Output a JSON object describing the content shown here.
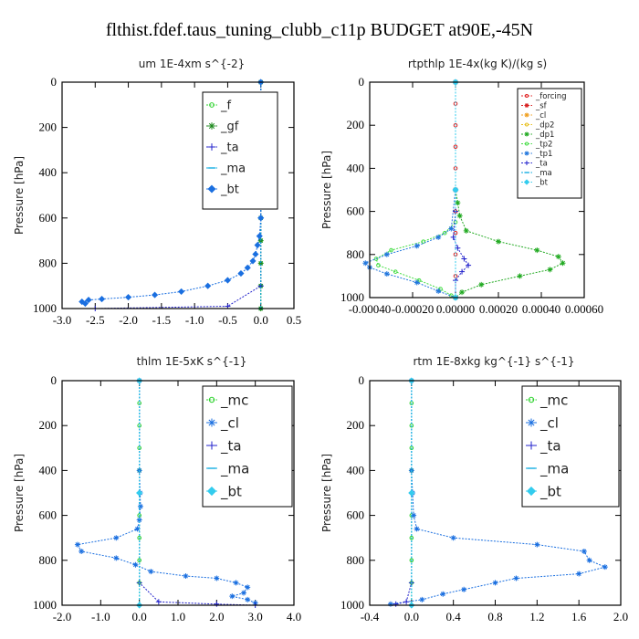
{
  "title": "flthist.fdef.taus_tuning_clubb_c11p  BUDGET at90E,-45N",
  "chart_data": [
    {
      "type": "line",
      "title": "um   1E-4xm s^{-2}",
      "ylabel": "Pressure [hPa]",
      "xlim": [
        -3.0,
        0.5
      ],
      "ylim": [
        1000,
        0
      ],
      "xticks": [
        "-3.0",
        "-2.5",
        "-2.0",
        "-1.5",
        "-1.0",
        "-0.5",
        "0.0",
        "0.5"
      ],
      "yticks": [
        "0",
        "200",
        "400",
        "600",
        "800",
        "1000"
      ],
      "legend_position": "top-right",
      "series": [
        {
          "name": "_f",
          "color": "#2bd12b",
          "marker": "circle",
          "points": [
            [
              0.0,
              0
            ],
            [
              0.0,
              100
            ],
            [
              0.0,
              200
            ],
            [
              0.0,
              300
            ],
            [
              0.0,
              400
            ],
            [
              0.0,
              500
            ],
            [
              0.0,
              600
            ],
            [
              0.0,
              700
            ],
            [
              0.0,
              800
            ],
            [
              0.0,
              900
            ],
            [
              0.0,
              1000
            ]
          ]
        },
        {
          "name": "_gf",
          "color": "#1f8a1f",
          "marker": "star",
          "points": [
            [
              0.0,
              0
            ],
            [
              0.0,
              100
            ],
            [
              0.0,
              200
            ],
            [
              0.0,
              300
            ],
            [
              0.0,
              400
            ],
            [
              0.0,
              500
            ],
            [
              0.0,
              600
            ],
            [
              0.0,
              700
            ],
            [
              0.0,
              800
            ],
            [
              0.0,
              900
            ],
            [
              0.0,
              1000
            ]
          ]
        },
        {
          "name": "_ta",
          "color": "#2222cc",
          "marker": "plus",
          "points": [
            [
              0.0,
              0
            ],
            [
              0.0,
              500
            ],
            [
              0.0,
              900
            ],
            [
              -0.5,
              990
            ],
            [
              -2.5,
              1000
            ]
          ]
        },
        {
          "name": "_ma",
          "color": "#00a8e0",
          "marker": "dash",
          "points": [
            [
              0.0,
              0
            ],
            [
              0.0,
              500
            ],
            [
              0.0,
              1000
            ]
          ]
        },
        {
          "name": "_bt",
          "color": "#1a6fe0",
          "marker": "diamond",
          "points": [
            [
              0.0,
              0
            ],
            [
              0.0,
              300
            ],
            [
              0.0,
              600
            ],
            [
              -0.02,
              680
            ],
            [
              -0.05,
              720
            ],
            [
              -0.08,
              760
            ],
            [
              -0.12,
              790
            ],
            [
              -0.2,
              820
            ],
            [
              -0.3,
              845
            ],
            [
              -0.5,
              875
            ],
            [
              -0.8,
              900
            ],
            [
              -1.2,
              925
            ],
            [
              -1.6,
              940
            ],
            [
              -2.0,
              950
            ],
            [
              -2.4,
              958
            ],
            [
              -2.6,
              962
            ],
            [
              -2.7,
              970
            ],
            [
              -2.65,
              978
            ]
          ]
        }
      ]
    },
    {
      "type": "line",
      "title": "rtpthlp   1E-4x(kg K)/(kg s)",
      "ylabel": "Pressure [hPa]",
      "xlim": [
        -0.0004,
        0.0006
      ],
      "ylim": [
        1000,
        0
      ],
      "xticks": [
        "-0.00040",
        "-0.00020",
        "0.00000",
        "0.00020",
        "0.00040",
        "0.00060"
      ],
      "yticks": [
        "0",
        "200",
        "400",
        "600",
        "800",
        "1000"
      ],
      "legend_position": "top-right",
      "series": [
        {
          "name": "_forcing",
          "color": "#e02020",
          "marker": "circle",
          "points": [
            [
              0.0,
              0
            ],
            [
              0.0,
              100
            ],
            [
              0.0,
              200
            ],
            [
              0.0,
              300
            ],
            [
              0.0,
              400
            ],
            [
              0.0,
              500
            ],
            [
              0.0,
              600
            ],
            [
              0.0,
              700
            ],
            [
              0.0,
              800
            ],
            [
              0.0,
              900
            ],
            [
              0.0,
              1000
            ]
          ]
        },
        {
          "name": "_sf",
          "color": "#d82020",
          "marker": "star",
          "points": [
            [
              0.0,
              0
            ],
            [
              0.0,
              500
            ],
            [
              0.0,
              1000
            ]
          ]
        },
        {
          "name": "_cl",
          "color": "#f0a020",
          "marker": "star",
          "points": [
            [
              0.0,
              0
            ],
            [
              0.0,
              500
            ],
            [
              0.0,
              1000
            ]
          ]
        },
        {
          "name": "_dp2",
          "color": "#e8c020",
          "marker": "circle",
          "points": [
            [
              0.0,
              0
            ],
            [
              0.0,
              500
            ],
            [
              0.0,
              1000
            ]
          ]
        },
        {
          "name": "_dp1",
          "color": "#22aa22",
          "marker": "star",
          "points": [
            [
              0.0,
              0
            ],
            [
              0.0,
              500
            ],
            [
              1e-05,
              560
            ],
            [
              2e-05,
              620
            ],
            [
              5e-05,
              690
            ],
            [
              0.0002,
              740
            ],
            [
              0.00038,
              780
            ],
            [
              0.00048,
              810
            ],
            [
              0.0005,
              840
            ],
            [
              0.00044,
              870
            ],
            [
              0.0003,
              900
            ],
            [
              0.00012,
              940
            ],
            [
              3e-05,
              975
            ],
            [
              0.0,
              1000
            ]
          ]
        },
        {
          "name": "_tp2",
          "color": "#44dd44",
          "marker": "circle",
          "points": [
            [
              0.0,
              0
            ],
            [
              0.0,
              500
            ],
            [
              0.0,
              650
            ],
            [
              -5e-05,
              700
            ],
            [
              -0.00015,
              740
            ],
            [
              -0.0003,
              780
            ],
            [
              -0.00037,
              820
            ],
            [
              -0.00036,
              850
            ],
            [
              -0.00028,
              880
            ],
            [
              -0.00017,
              920
            ],
            [
              -7e-05,
              960
            ],
            [
              -2e-05,
              990
            ],
            [
              0.0,
              1000
            ]
          ]
        },
        {
          "name": "_tp1",
          "color": "#2277dd",
          "marker": "star",
          "points": [
            [
              0.0,
              0
            ],
            [
              0.0,
              500
            ],
            [
              -2e-05,
              680
            ],
            [
              -8e-05,
              720
            ],
            [
              -0.00018,
              760
            ],
            [
              -0.00032,
              800
            ],
            [
              -0.00042,
              840
            ],
            [
              -0.0004,
              860
            ],
            [
              -0.00032,
              890
            ],
            [
              -0.00018,
              930
            ],
            [
              -8e-05,
              970
            ],
            [
              0.0,
              1000
            ]
          ]
        },
        {
          "name": "_ta",
          "color": "#2222cc",
          "marker": "plus",
          "points": [
            [
              0.0,
              0
            ],
            [
              0.0,
              600
            ],
            [
              -1e-05,
              720
            ],
            [
              1e-05,
              770
            ],
            [
              4e-05,
              820
            ],
            [
              6e-05,
              850
            ],
            [
              3e-05,
              880
            ],
            [
              0.0,
              920
            ],
            [
              0.0,
              1000
            ]
          ]
        },
        {
          "name": "_ma",
          "color": "#00a8e0",
          "marker": "dash",
          "points": [
            [
              0.0,
              0
            ],
            [
              0.0,
              500
            ],
            [
              0.0,
              1000
            ]
          ]
        },
        {
          "name": "_bt",
          "color": "#33ccee",
          "marker": "diamond",
          "points": [
            [
              0.0,
              0
            ],
            [
              0.0,
              500
            ],
            [
              0.0,
              1000
            ]
          ]
        }
      ]
    },
    {
      "type": "line",
      "title": "thlm   1E-5xK s^{-1}",
      "ylabel": "Pressure [hPa]",
      "xlim": [
        -2.0,
        4.0
      ],
      "ylim": [
        1000,
        0
      ],
      "xticks": [
        "-2.0",
        "-1.0",
        "0.0",
        "1.0",
        "2.0",
        "3.0",
        "4.0"
      ],
      "yticks": [
        "0",
        "200",
        "400",
        "600",
        "800",
        "1000"
      ],
      "legend_position": "top-right",
      "series": [
        {
          "name": "_mc",
          "color": "#2bd12b",
          "marker": "circle",
          "points": [
            [
              0.0,
              0
            ],
            [
              0.0,
              100
            ],
            [
              0.0,
              200
            ],
            [
              0.0,
              300
            ],
            [
              0.0,
              400
            ],
            [
              0.0,
              500
            ],
            [
              0.0,
              600
            ],
            [
              0.0,
              700
            ],
            [
              0.0,
              800
            ],
            [
              0.0,
              900
            ],
            [
              0.0,
              1000
            ]
          ]
        },
        {
          "name": "_cl",
          "color": "#1a6fe0",
          "marker": "star",
          "points": [
            [
              0.0,
              0
            ],
            [
              0.0,
              400
            ],
            [
              0.02,
              500
            ],
            [
              0.03,
              560
            ],
            [
              0.0,
              620
            ],
            [
              -0.05,
              660
            ],
            [
              -0.6,
              700
            ],
            [
              -1.6,
              730
            ],
            [
              -1.5,
              760
            ],
            [
              -0.6,
              790
            ],
            [
              -0.1,
              820
            ],
            [
              0.3,
              850
            ],
            [
              1.2,
              870
            ],
            [
              2.0,
              880
            ],
            [
              2.5,
              900
            ],
            [
              2.8,
              920
            ],
            [
              2.7,
              945
            ],
            [
              2.4,
              960
            ],
            [
              2.8,
              975
            ],
            [
              3.0,
              990
            ]
          ]
        },
        {
          "name": "_ta",
          "color": "#2222cc",
          "marker": "plus",
          "points": [
            [
              0.0,
              0
            ],
            [
              0.0,
              900
            ],
            [
              0.5,
              985
            ],
            [
              2.0,
              995
            ],
            [
              3.0,
              1000
            ]
          ]
        },
        {
          "name": "_ma",
          "color": "#00a8e0",
          "marker": "dash",
          "points": [
            [
              0.0,
              0
            ],
            [
              0.0,
              500
            ],
            [
              0.0,
              1000
            ]
          ]
        },
        {
          "name": "_bt",
          "color": "#33ccee",
          "marker": "diamond",
          "points": [
            [
              0.0,
              0
            ],
            [
              0.0,
              500
            ],
            [
              0.0,
              1000
            ]
          ]
        }
      ]
    },
    {
      "type": "line",
      "title": "rtm   1E-8xkg kg^{-1} s^{-1}",
      "ylabel": "Pressure [hPa]",
      "xlim": [
        -0.4,
        2.0
      ],
      "ylim": [
        1000,
        0
      ],
      "xticks": [
        "-0.4",
        "0.0",
        "0.4",
        "0.8",
        "1.2",
        "1.6",
        "2.0"
      ],
      "yticks": [
        "0",
        "200",
        "400",
        "600",
        "800",
        "1000"
      ],
      "legend_position": "top-right",
      "series": [
        {
          "name": "_mc",
          "color": "#2bd12b",
          "marker": "circle",
          "points": [
            [
              0.0,
              0
            ],
            [
              0.0,
              100
            ],
            [
              0.0,
              200
            ],
            [
              0.0,
              300
            ],
            [
              0.0,
              400
            ],
            [
              0.0,
              500
            ],
            [
              0.0,
              600
            ],
            [
              0.0,
              700
            ],
            [
              0.0,
              800
            ],
            [
              0.0,
              900
            ],
            [
              0.0,
              1000
            ]
          ]
        },
        {
          "name": "_cl",
          "color": "#1a6fe0",
          "marker": "star",
          "points": [
            [
              0.0,
              0
            ],
            [
              0.0,
              400
            ],
            [
              0.01,
              500
            ],
            [
              0.02,
              600
            ],
            [
              0.05,
              660
            ],
            [
              0.4,
              700
            ],
            [
              1.2,
              730
            ],
            [
              1.65,
              760
            ],
            [
              1.7,
              800
            ],
            [
              1.85,
              830
            ],
            [
              1.6,
              860
            ],
            [
              1.0,
              880
            ],
            [
              0.8,
              900
            ],
            [
              0.5,
              930
            ],
            [
              0.3,
              950
            ],
            [
              0.1,
              975
            ],
            [
              -0.2,
              995
            ]
          ]
        },
        {
          "name": "_ta",
          "color": "#2222cc",
          "marker": "plus",
          "points": [
            [
              0.0,
              0
            ],
            [
              0.0,
              900
            ],
            [
              -0.05,
              985
            ],
            [
              -0.15,
              995
            ]
          ]
        },
        {
          "name": "_ma",
          "color": "#00a8e0",
          "marker": "dash",
          "points": [
            [
              0.0,
              0
            ],
            [
              0.0,
              500
            ],
            [
              0.0,
              1000
            ]
          ]
        },
        {
          "name": "_bt",
          "color": "#33ccee",
          "marker": "diamond",
          "points": [
            [
              0.0,
              0
            ],
            [
              0.0,
              500
            ],
            [
              0.0,
              1000
            ]
          ]
        }
      ]
    }
  ]
}
